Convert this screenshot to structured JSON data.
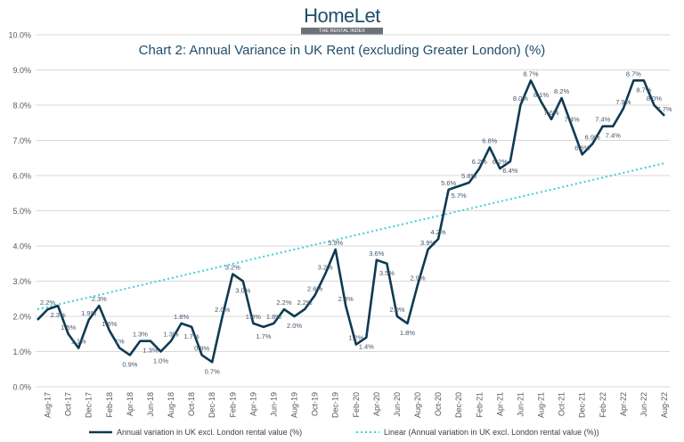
{
  "logo": {
    "name": "HomeLet",
    "tagline": "THE RENTAL INDEX"
  },
  "chart_data": {
    "type": "line",
    "title": "Chart 2: Annual Variance in UK Rent (excluding Greater London) (%)",
    "categories": [
      "Jul-17",
      "Aug-17",
      "Sep-17",
      "Oct-17",
      "Nov-17",
      "Dec-17",
      "Jan-18",
      "Feb-18",
      "Mar-18",
      "Apr-18",
      "May-18",
      "Jun-18",
      "Jul-18",
      "Aug-18",
      "Sep-18",
      "Oct-18",
      "Nov-18",
      "Dec-18",
      "Jan-19",
      "Feb-19",
      "Mar-19",
      "Apr-19",
      "May-19",
      "Jun-19",
      "Jul-19",
      "Aug-19",
      "Sep-19",
      "Oct-19",
      "Nov-19",
      "Dec-19",
      "Jan-20",
      "Feb-20",
      "Mar-20",
      "Apr-20",
      "May-20",
      "Jun-20",
      "Jul-20",
      "Aug-20",
      "Sep-20",
      "Oct-20",
      "Nov-20",
      "Dec-20",
      "Jan-21",
      "Feb-21",
      "Mar-21",
      "Apr-21",
      "May-21",
      "Jun-21",
      "Jul-21",
      "Aug-21",
      "Sep-21",
      "Oct-21",
      "Nov-21",
      "Dec-21",
      "Jan-22",
      "Feb-22",
      "Mar-22",
      "Apr-22",
      "May-22",
      "Jun-22",
      "Jul-22",
      "Aug-22"
    ],
    "x_tick_labels": [
      "Aug-17",
      "Oct-17",
      "Dec-17",
      "Feb-18",
      "Apr-18",
      "Jun-18",
      "Aug-18",
      "Oct-18",
      "Dec-18",
      "Feb-19",
      "Apr-19",
      "Jun-19",
      "Aug-19",
      "Oct-19",
      "Dec-19",
      "Feb-20",
      "Apr-20",
      "Jun-20",
      "Aug-20",
      "Oct-20",
      "Dec-20",
      "Feb-21",
      "Apr-21",
      "Jun-21",
      "Aug-21",
      "Oct-21",
      "Dec-21",
      "Feb-22",
      "Apr-22",
      "Jun-22",
      "Aug-22"
    ],
    "y_tick_labels": [
      "0.0%",
      "1.0%",
      "2.0%",
      "3.0%",
      "4.0%",
      "5.0%",
      "6.0%",
      "7.0%",
      "8.0%",
      "9.0%",
      "10.0%"
    ],
    "ylim": [
      0,
      10
    ],
    "grid": true,
    "legend_position": "bottom",
    "series": [
      {
        "name": "Annual variation in UK excl. London rental value (%)",
        "color": "#0e3a52",
        "values": [
          1.9,
          2.2,
          2.3,
          1.5,
          1.1,
          1.9,
          2.3,
          1.6,
          1.1,
          0.9,
          1.3,
          1.3,
          1.0,
          1.3,
          1.8,
          1.7,
          0.9,
          0.7,
          2.0,
          3.2,
          3.0,
          1.8,
          1.7,
          1.8,
          2.2,
          2.0,
          2.2,
          2.6,
          3.2,
          3.9,
          2.3,
          1.2,
          1.4,
          3.6,
          3.5,
          2.0,
          1.8,
          2.9,
          3.9,
          4.2,
          5.6,
          5.7,
          5.8,
          6.2,
          6.8,
          6.2,
          6.4,
          8.0,
          8.7,
          8.1,
          7.6,
          8.2,
          7.4,
          6.6,
          6.9,
          7.4,
          7.4,
          7.9,
          8.7,
          8.7,
          8.0,
          7.7
        ],
        "data_labels": [
          "",
          "2.2%",
          "2.3%",
          "1.5%",
          "1.1%",
          "1.9%",
          "2.3%",
          "1.6%",
          "1%",
          "0.9%",
          "1.3%",
          "1.3%",
          "1.0%",
          "1.3%",
          "1.8%",
          "1.7%",
          "0.9%",
          "0.7%",
          "2.0%",
          "3.2%",
          "3.0%",
          "1.8%",
          "1.7%",
          "1.8%",
          "2.2%",
          "2.0%",
          "2.2%",
          "2.6%",
          "3.2%",
          "3.9%",
          "2.3%",
          "1.2%",
          "1.4%",
          "3.6%",
          "3.5%",
          "2.0%",
          "1.8%",
          "2.9%",
          "3.9%",
          "4.2%",
          "5.6%",
          "5.7%",
          "5.8%",
          "6.2%",
          "6.8%",
          "6.2%",
          "6.4%",
          "8.0%",
          "8.7%",
          "8.1%",
          "7.6%",
          "8.2%",
          "7.4%",
          "6.6%",
          "6.9%",
          "7.4%",
          "7.4%",
          "7.9%",
          "8.7%",
          "8.7%",
          "8.0%",
          "7.7%"
        ]
      },
      {
        "name": "Linear (Annual variation in UK excl. London rental value (%))",
        "color": "#3ccfd6",
        "type": "trendline",
        "start": 2.2,
        "end": 6.35
      }
    ]
  }
}
